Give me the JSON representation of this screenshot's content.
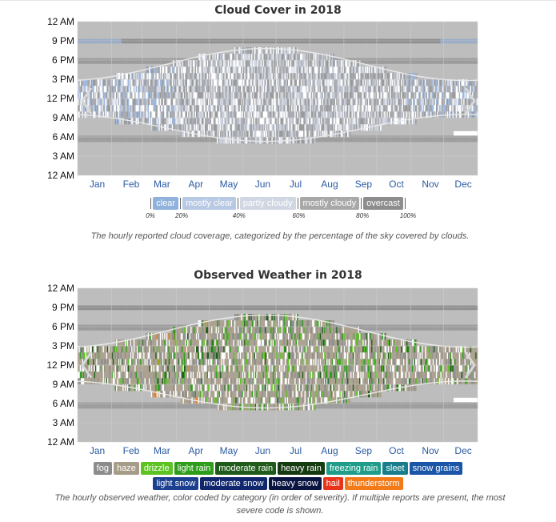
{
  "charts": [
    {
      "title": "Cloud Cover in 2018",
      "caption": "The hourly reported cloud coverage, categorized by the percentage of the sky covered by clouds.",
      "legend": [
        {
          "label": "clear",
          "color": "#8fb1dc",
          "text": "#ffffff"
        },
        {
          "label": "mostly clear",
          "color": "#b7c9e3",
          "text": "#ffffff"
        },
        {
          "label": "partly cloudy",
          "color": "#d0d7e2",
          "text": "#ffffff"
        },
        {
          "label": "mostly cloudy",
          "color": "#a8a8a8",
          "text": "#ffffff"
        },
        {
          "label": "overcast",
          "color": "#8d8d8d",
          "text": "#ffffff"
        }
      ],
      "legend_ticks": [
        "0%",
        "20%",
        "40%",
        "60%",
        "80%",
        "100%"
      ]
    },
    {
      "title": "Observed Weather in 2018",
      "caption": "The hourly observed weather, color coded by category (in order of severity). If multiple reports are present, the most severe code is shown.",
      "legend_row1": [
        {
          "label": "fog",
          "color": "#8c8c8c",
          "text": "#ffffff"
        },
        {
          "label": "haze",
          "color": "#a79c87",
          "text": "#ffffff"
        },
        {
          "label": "drizzle",
          "color": "#5dc323",
          "text": "#ffffff"
        },
        {
          "label": "light rain",
          "color": "#2e9d1b",
          "text": "#ffffff"
        },
        {
          "label": "moderate rain",
          "color": "#1f5c1c",
          "text": "#ffffff"
        },
        {
          "label": "heavy rain",
          "color": "#163b11",
          "text": "#ffffff"
        },
        {
          "label": "freezing rain",
          "color": "#1e9e8a",
          "text": "#ffffff"
        },
        {
          "label": "sleet",
          "color": "#197d8c",
          "text": "#ffffff"
        },
        {
          "label": "snow grains",
          "color": "#1a55a8",
          "text": "#ffffff"
        }
      ],
      "legend_row2": [
        {
          "label": "light snow",
          "color": "#1c3f8f",
          "text": "#ffffff"
        },
        {
          "label": "moderate snow",
          "color": "#10266d",
          "text": "#ffffff"
        },
        {
          "label": "heavy snow",
          "color": "#0a1440",
          "text": "#ffffff"
        },
        {
          "label": "hail",
          "color": "#e8341b",
          "text": "#ffffff"
        },
        {
          "label": "thunderstorm",
          "color": "#f27a18",
          "text": "#ffffff"
        }
      ]
    }
  ],
  "chart_data": [
    {
      "type": "heatmap",
      "title": "Cloud Cover in 2018",
      "x_tick_labels": [
        "Jan",
        "Feb",
        "Mar",
        "Apr",
        "May",
        "Jun",
        "Jul",
        "Aug",
        "Sep",
        "Oct",
        "Nov",
        "Dec"
      ],
      "y_tick_labels": [
        "12 AM",
        "3 AM",
        "6 AM",
        "9 AM",
        "12 PM",
        "3 PM",
        "6 PM",
        "9 PM",
        "12 AM"
      ],
      "categories": [
        "clear",
        "mostly clear",
        "partly cloudy",
        "mostly cloudy",
        "overcast"
      ],
      "category_ranges_pct": [
        [
          0,
          20
        ],
        [
          20,
          40
        ],
        [
          40,
          60
        ],
        [
          60,
          80
        ],
        [
          80,
          100
        ]
      ],
      "grid": true
    },
    {
      "type": "heatmap",
      "title": "Observed Weather in 2018",
      "x_tick_labels": [
        "Jan",
        "Feb",
        "Mar",
        "Apr",
        "May",
        "Jun",
        "Jul",
        "Aug",
        "Sep",
        "Oct",
        "Nov",
        "Dec"
      ],
      "y_tick_labels": [
        "12 AM",
        "3 AM",
        "6 AM",
        "9 AM",
        "12 PM",
        "3 PM",
        "6 PM",
        "9 PM",
        "12 AM"
      ],
      "categories": [
        "fog",
        "haze",
        "drizzle",
        "light rain",
        "moderate rain",
        "heavy rain",
        "freezing rain",
        "sleet",
        "snow grains",
        "light snow",
        "moderate snow",
        "heavy snow",
        "hail",
        "thunderstorm"
      ],
      "grid": true
    }
  ]
}
